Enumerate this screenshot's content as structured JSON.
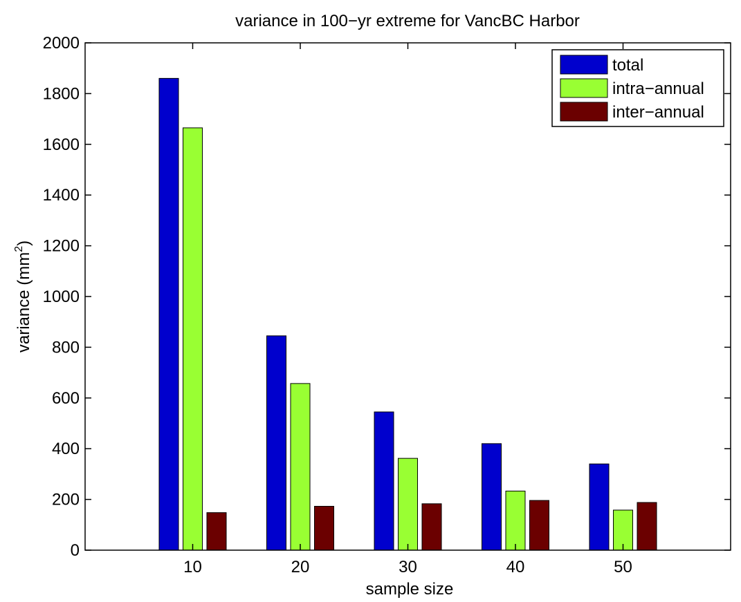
{
  "chart_data": {
    "type": "bar",
    "title": "variance in 100−yr extreme for VancBC Harbor",
    "xlabel": "sample size",
    "ylabel_main": "variance (mm",
    "ylabel_sup": "2",
    "ylabel_close": ")",
    "categories": [
      "10",
      "20",
      "30",
      "40",
      "50"
    ],
    "y_ticks": [
      "0",
      "200",
      "400",
      "600",
      "800",
      "1000",
      "1200",
      "1400",
      "1600",
      "1800",
      "2000"
    ],
    "ylim": [
      0,
      2000
    ],
    "grid": false,
    "legend_position": "top-right",
    "series": [
      {
        "name": "total",
        "color": "#0000cd",
        "values": [
          1860,
          845,
          545,
          420,
          340
        ]
      },
      {
        "name": "intra−annual",
        "color": "#99ff33",
        "values": [
          1665,
          657,
          362,
          233,
          158
        ]
      },
      {
        "name": "inter−annual",
        "color": "#6b0000",
        "values": [
          148,
          173,
          183,
          196,
          188
        ]
      }
    ]
  }
}
